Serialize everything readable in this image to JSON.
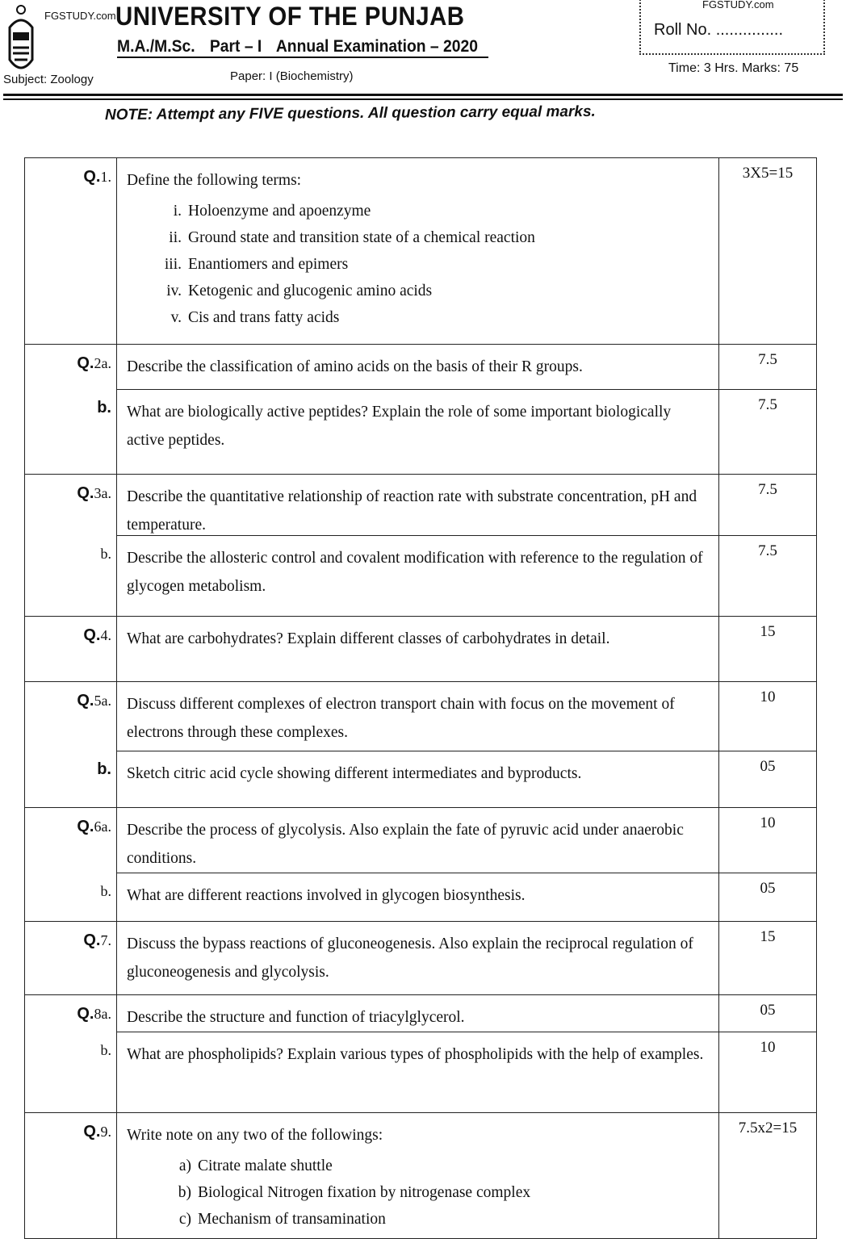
{
  "header": {
    "watermark_left": "FGSTUDY.com",
    "watermark_right": "FGSTUDY.com",
    "university": "UNIVERSITY OF THE PUNJAB",
    "program": "M.A./M.Sc.",
    "part": "Part – I",
    "exam": "Annual Examination – 2020",
    "roll_no": "Roll No. ...............",
    "time_marks": "Time: 3 Hrs.  Marks: 75",
    "subject": "Subject: Zoology",
    "paper": "Paper: I (Biochemistry)",
    "note": "NOTE: Attempt any FIVE questions. All question carry equal marks."
  },
  "questions": [
    {
      "num": "Q.",
      "sub": "1.",
      "text": "Define the following terms:",
      "marks": "3X5=15",
      "items": [
        [
          "i.",
          "Holoenzyme and apoenzyme"
        ],
        [
          "ii.",
          "Ground state and transition state of a chemical reaction"
        ],
        [
          "iii.",
          "Enantiomers and epimers"
        ],
        [
          "iv.",
          "Ketogenic and glucogenic amino acids"
        ],
        [
          "v.",
          "Cis and trans fatty acids"
        ]
      ]
    },
    {
      "num": "Q.",
      "sub": "2a.",
      "text": "Describe the classification of amino acids on the basis of their R groups.",
      "marks": "7.5"
    },
    {
      "num": "b.",
      "sub": "",
      "text": "What are biologically active peptides?  Explain the role of some important biologically active peptides.",
      "marks": "7.5"
    },
    {
      "num": "Q.",
      "sub": "3a.",
      "text": "Describe the quantitative relationship of reaction rate with substrate concentration, pH and temperature.",
      "marks": "7.5"
    },
    {
      "num": "",
      "sub": "b.",
      "text": "Describe the allosteric control and covalent modification with reference to the regulation of glycogen metabolism.",
      "marks": "7.5"
    },
    {
      "num": "Q.",
      "sub": "4.",
      "text": "What are carbohydrates? Explain different classes of carbohydrates in detail.",
      "marks": "15"
    },
    {
      "num": "Q.",
      "sub": "5a.",
      "text": "Discuss different complexes of electron transport chain with focus on the movement of electrons through these complexes.",
      "marks": "10"
    },
    {
      "num": "b.",
      "sub": "",
      "text": "Sketch citric acid cycle showing different intermediates and byproducts.",
      "marks": "05"
    },
    {
      "num": "Q.",
      "sub": "6a.",
      "text": "Describe the process of glycolysis. Also explain the fate of pyruvic acid under anaerobic conditions.",
      "marks": "10"
    },
    {
      "num": "",
      "sub": "b.",
      "text": "What are different reactions involved in glycogen biosynthesis.",
      "marks": "05"
    },
    {
      "num": "Q.",
      "sub": "7.",
      "text": "Discuss the bypass reactions of gluconeogenesis. Also explain the reciprocal regulation of gluconeogenesis and glycolysis.",
      "marks": "15"
    },
    {
      "num": "Q.",
      "sub": "8a.",
      "text": "Describe the structure and function of triacylglycerol.",
      "marks": "05"
    },
    {
      "num": "",
      "sub": "b.",
      "text": "What are phospholipids? Explain various types of phospholipids with the help of examples.",
      "marks": "10"
    },
    {
      "num": "Q.",
      "sub": "9.",
      "text": "Write note on any two of the followings:",
      "marks": "7.5x2=15",
      "items": [
        [
          "a)",
          "Citrate malate  shuttle"
        ],
        [
          "b)",
          "Biological Nitrogen fixation by  nitrogenase complex"
        ],
        [
          "c)",
          "Mechanism of transamination"
        ]
      ]
    }
  ]
}
